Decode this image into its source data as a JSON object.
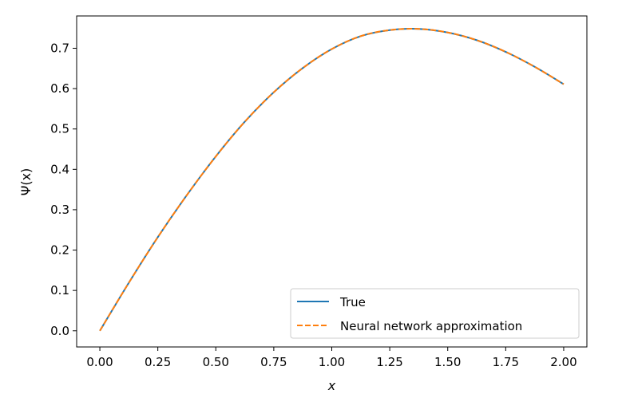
{
  "chart_data": {
    "type": "line",
    "xlabel": "x",
    "ylabel": "Ψ(x)",
    "xlim": [
      -0.1,
      2.1
    ],
    "ylim": [
      -0.04,
      0.78
    ],
    "xticks": [
      "0.00",
      "0.25",
      "0.50",
      "0.75",
      "1.00",
      "1.25",
      "1.50",
      "1.75",
      "2.00"
    ],
    "yticks": [
      "0.0",
      "0.1",
      "0.2",
      "0.3",
      "0.4",
      "0.5",
      "0.6",
      "0.7"
    ],
    "grid": false,
    "legend_position": "lower-right",
    "x": [
      0.0,
      0.125,
      0.25,
      0.375,
      0.5,
      0.625,
      0.75,
      0.875,
      1.0,
      1.125,
      1.25,
      1.375,
      1.5,
      1.625,
      1.75,
      1.875,
      2.0
    ],
    "series": [
      {
        "name": "True",
        "color": "#1f77b4",
        "style": "solid",
        "values": [
          0.0,
          0.119,
          0.232,
          0.336,
          0.432,
          0.518,
          0.591,
          0.651,
          0.698,
          0.73,
          0.745,
          0.748,
          0.739,
          0.72,
          0.691,
          0.654,
          0.611
        ]
      },
      {
        "name": "Neural network approximation",
        "color": "#ff7f0e",
        "style": "dashed",
        "values": [
          0.0,
          0.119,
          0.232,
          0.336,
          0.432,
          0.518,
          0.591,
          0.651,
          0.698,
          0.73,
          0.745,
          0.748,
          0.739,
          0.72,
          0.691,
          0.654,
          0.611
        ]
      }
    ]
  }
}
